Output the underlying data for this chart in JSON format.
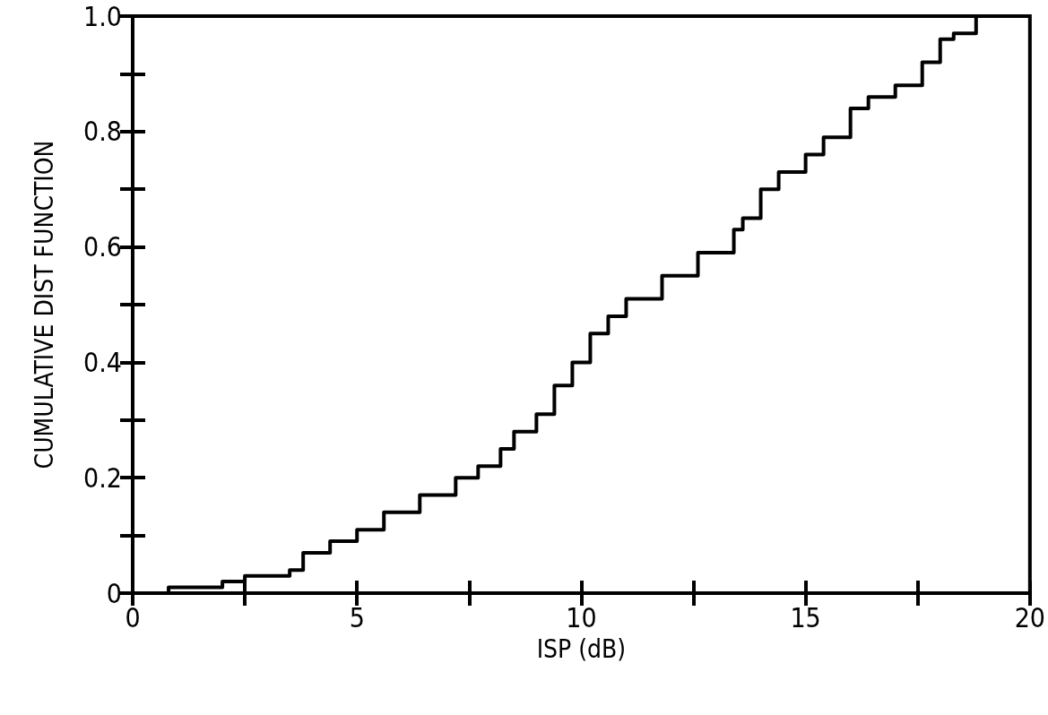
{
  "chart_data": {
    "type": "step",
    "xlabel": "ISP (dB)",
    "ylabel": "CUMULATIVE DIST FUNCTION",
    "color": "#000000",
    "marker": "none",
    "line_style": "solid",
    "grid": false,
    "xlim": [
      0,
      20
    ],
    "ylim": [
      0,
      1
    ],
    "xticks": [
      0,
      {
        "value": 2.5,
        "label": null
      },
      5,
      {
        "value": 7.5,
        "label": null
      },
      10,
      {
        "value": 12.5,
        "label": null
      },
      15,
      {
        "value": 17.5,
        "label": null
      },
      20
    ],
    "yticks": [
      0,
      {
        "value": 0.1,
        "label": null
      },
      0.2,
      {
        "value": 0.3,
        "label": null
      },
      0.4,
      {
        "value": 0.5,
        "label": null
      },
      0.6,
      {
        "value": 0.7,
        "label": null
      },
      0.8,
      {
        "value": 0.9,
        "label": null
      },
      {
        "value": 1,
        "label": "1.0"
      }
    ],
    "x": [
      0.3,
      0.8,
      2.0,
      2.5,
      3.5,
      3.8,
      4.4,
      5.0,
      5.6,
      6.4,
      7.2,
      7.7,
      8.2,
      8.5,
      9.0,
      9.4,
      9.8,
      10.2,
      10.6,
      11.0,
      11.8,
      12.6,
      13.4,
      13.6,
      14.0,
      14.4,
      15.0,
      15.4,
      16.0,
      16.4,
      17.0,
      17.6,
      18.0,
      18.3,
      18.8
    ],
    "values": [
      0,
      0.01,
      0.02,
      0.03,
      0.04,
      0.07,
      0.09,
      0.11,
      0.14,
      0.17,
      0.2,
      0.22,
      0.25,
      0.28,
      0.31,
      0.36,
      0.4,
      0.45,
      0.48,
      0.51,
      0.55,
      0.59,
      0.63,
      0.65,
      0.7,
      0.73,
      0.76,
      0.79,
      0.84,
      0.86,
      0.88,
      0.92,
      0.96,
      0.97,
      1.0
    ]
  }
}
